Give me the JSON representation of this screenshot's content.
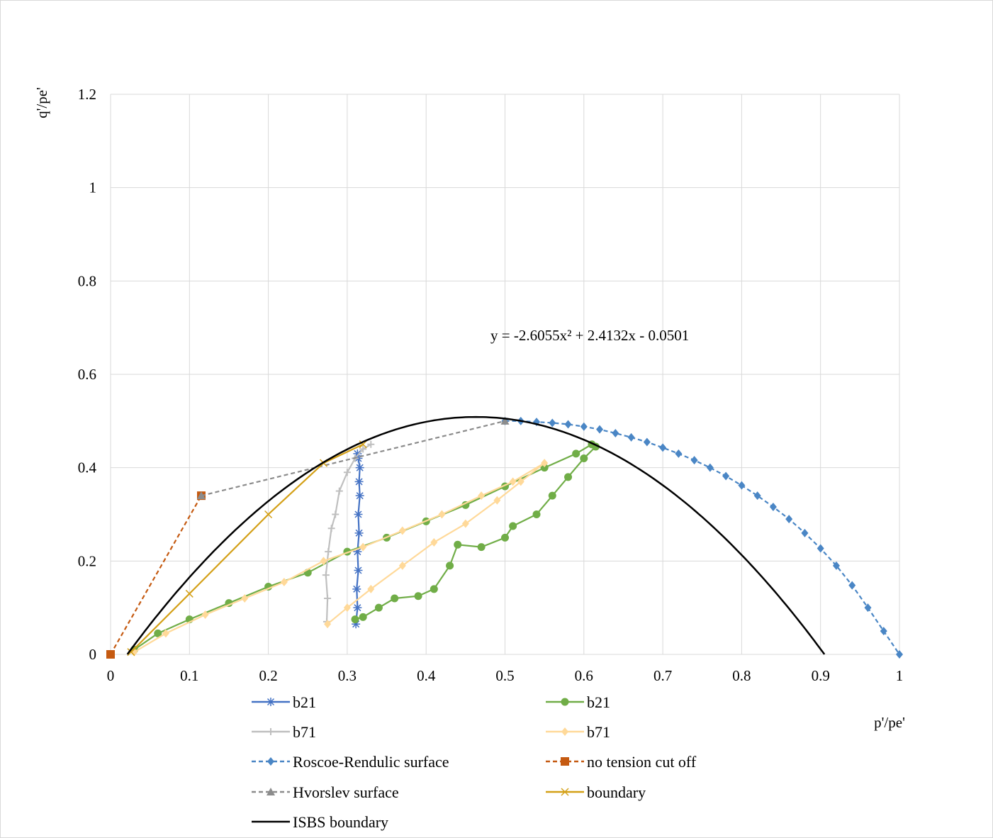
{
  "chart_data": {
    "type": "scatter",
    "title": "",
    "xlabel": "p'/pe'",
    "ylabel": "q'/pe'",
    "xlim": [
      0,
      1
    ],
    "ylim": [
      0,
      1.2
    ],
    "x_ticks": [
      "0",
      "0.1",
      "0.2",
      "0.3",
      "0.4",
      "0.5",
      "0.6",
      "0.7",
      "0.8",
      "0.9",
      "1"
    ],
    "y_ticks": [
      "0",
      "0.2",
      "0.4",
      "0.6",
      "0.8",
      "1",
      "1.2"
    ],
    "grid": true,
    "legend_position": "bottom",
    "annotation": "y = -2.6055x² + 2.4132x - 0.0501",
    "series": [
      {
        "name": "b21",
        "marker": "asterisk",
        "line": "solid",
        "color": "#4472c4",
        "points": [
          [
            0.311,
            0.065
          ],
          [
            0.313,
            0.1
          ],
          [
            0.312,
            0.14
          ],
          [
            0.314,
            0.18
          ],
          [
            0.313,
            0.22
          ],
          [
            0.315,
            0.26
          ],
          [
            0.314,
            0.3
          ],
          [
            0.316,
            0.34
          ],
          [
            0.315,
            0.37
          ],
          [
            0.316,
            0.4
          ],
          [
            0.314,
            0.42
          ],
          [
            0.313,
            0.43
          ]
        ]
      },
      {
        "name": "b21",
        "marker": "circle",
        "line": "solid",
        "color": "#70ad47",
        "points": [
          [
            0.03,
            0.01
          ],
          [
            0.06,
            0.045
          ],
          [
            0.1,
            0.075
          ],
          [
            0.15,
            0.11
          ],
          [
            0.2,
            0.145
          ],
          [
            0.25,
            0.175
          ],
          [
            0.3,
            0.22
          ],
          [
            0.35,
            0.25
          ],
          [
            0.4,
            0.285
          ],
          [
            0.45,
            0.32
          ],
          [
            0.5,
            0.36
          ],
          [
            0.55,
            0.4
          ],
          [
            0.59,
            0.43
          ],
          [
            0.61,
            0.45
          ],
          [
            0.615,
            0.445
          ],
          [
            0.6,
            0.42
          ],
          [
            0.58,
            0.38
          ],
          [
            0.56,
            0.34
          ],
          [
            0.54,
            0.3
          ],
          [
            0.51,
            0.275
          ],
          [
            0.5,
            0.25
          ],
          [
            0.47,
            0.23
          ],
          [
            0.44,
            0.235
          ],
          [
            0.43,
            0.19
          ],
          [
            0.41,
            0.14
          ],
          [
            0.39,
            0.125
          ],
          [
            0.36,
            0.12
          ],
          [
            0.34,
            0.1
          ],
          [
            0.32,
            0.08
          ],
          [
            0.31,
            0.075
          ]
        ]
      },
      {
        "name": "b71",
        "marker": "plus",
        "line": "solid",
        "color": "#bfbfbf",
        "points": [
          [
            0.274,
            0.07
          ],
          [
            0.275,
            0.12
          ],
          [
            0.273,
            0.17
          ],
          [
            0.276,
            0.22
          ],
          [
            0.28,
            0.27
          ],
          [
            0.285,
            0.3
          ],
          [
            0.29,
            0.35
          ],
          [
            0.3,
            0.39
          ],
          [
            0.31,
            0.42
          ],
          [
            0.32,
            0.44
          ],
          [
            0.33,
            0.45
          ]
        ]
      },
      {
        "name": "b71",
        "marker": "diamond",
        "line": "solid",
        "color": "#ffd999",
        "points": [
          [
            0.03,
            0.005
          ],
          [
            0.07,
            0.045
          ],
          [
            0.12,
            0.085
          ],
          [
            0.17,
            0.12
          ],
          [
            0.22,
            0.155
          ],
          [
            0.27,
            0.2
          ],
          [
            0.32,
            0.23
          ],
          [
            0.37,
            0.265
          ],
          [
            0.42,
            0.3
          ],
          [
            0.47,
            0.34
          ],
          [
            0.51,
            0.37
          ],
          [
            0.55,
            0.41
          ],
          [
            0.52,
            0.37
          ],
          [
            0.49,
            0.33
          ],
          [
            0.45,
            0.28
          ],
          [
            0.41,
            0.24
          ],
          [
            0.37,
            0.19
          ],
          [
            0.33,
            0.14
          ],
          [
            0.3,
            0.1
          ],
          [
            0.275,
            0.065
          ]
        ]
      },
      {
        "name": "Roscoe-Rendulic  surface",
        "marker": "diamond",
        "line": "dashed",
        "color": "#4a86c5",
        "points": [
          [
            0.5,
            0.5
          ],
          [
            0.52,
            0.5
          ],
          [
            0.54,
            0.498
          ],
          [
            0.56,
            0.496
          ],
          [
            0.58,
            0.493
          ],
          [
            0.6,
            0.488
          ],
          [
            0.62,
            0.482
          ],
          [
            0.64,
            0.474
          ],
          [
            0.66,
            0.465
          ],
          [
            0.68,
            0.455
          ],
          [
            0.7,
            0.443
          ],
          [
            0.72,
            0.43
          ],
          [
            0.74,
            0.416
          ],
          [
            0.76,
            0.4
          ],
          [
            0.78,
            0.382
          ],
          [
            0.8,
            0.362
          ],
          [
            0.82,
            0.34
          ],
          [
            0.84,
            0.316
          ],
          [
            0.86,
            0.29
          ],
          [
            0.88,
            0.26
          ],
          [
            0.9,
            0.227
          ],
          [
            0.92,
            0.19
          ],
          [
            0.94,
            0.148
          ],
          [
            0.96,
            0.1
          ],
          [
            0.98,
            0.05
          ],
          [
            1.0,
            0.0
          ]
        ]
      },
      {
        "name": "no tension cut off",
        "marker": "square",
        "line": "dashed",
        "color": "#c55a11",
        "points": [
          [
            0,
            0
          ],
          [
            0.115,
            0.34
          ]
        ]
      },
      {
        "name": "Hvorslev surface",
        "marker": "triangle",
        "line": "dashed",
        "color": "#8c8c8c",
        "points": [
          [
            0.115,
            0.34
          ],
          [
            0.5,
            0.5
          ]
        ]
      },
      {
        "name": "boundary",
        "marker": "x",
        "line": "solid",
        "color": "#d4a017",
        "points": [
          [
            0.026,
            0.005
          ],
          [
            0.1,
            0.13
          ],
          [
            0.2,
            0.3
          ],
          [
            0.27,
            0.41
          ],
          [
            0.32,
            0.45
          ]
        ]
      },
      {
        "name": "ISBS boundary",
        "marker": "none",
        "line": "solid",
        "color": "#000000",
        "fit": {
          "a": -2.6055,
          "b": 2.4132,
          "c": -0.0501,
          "x_range": [
            0.0213,
            0.9049
          ]
        }
      }
    ]
  }
}
